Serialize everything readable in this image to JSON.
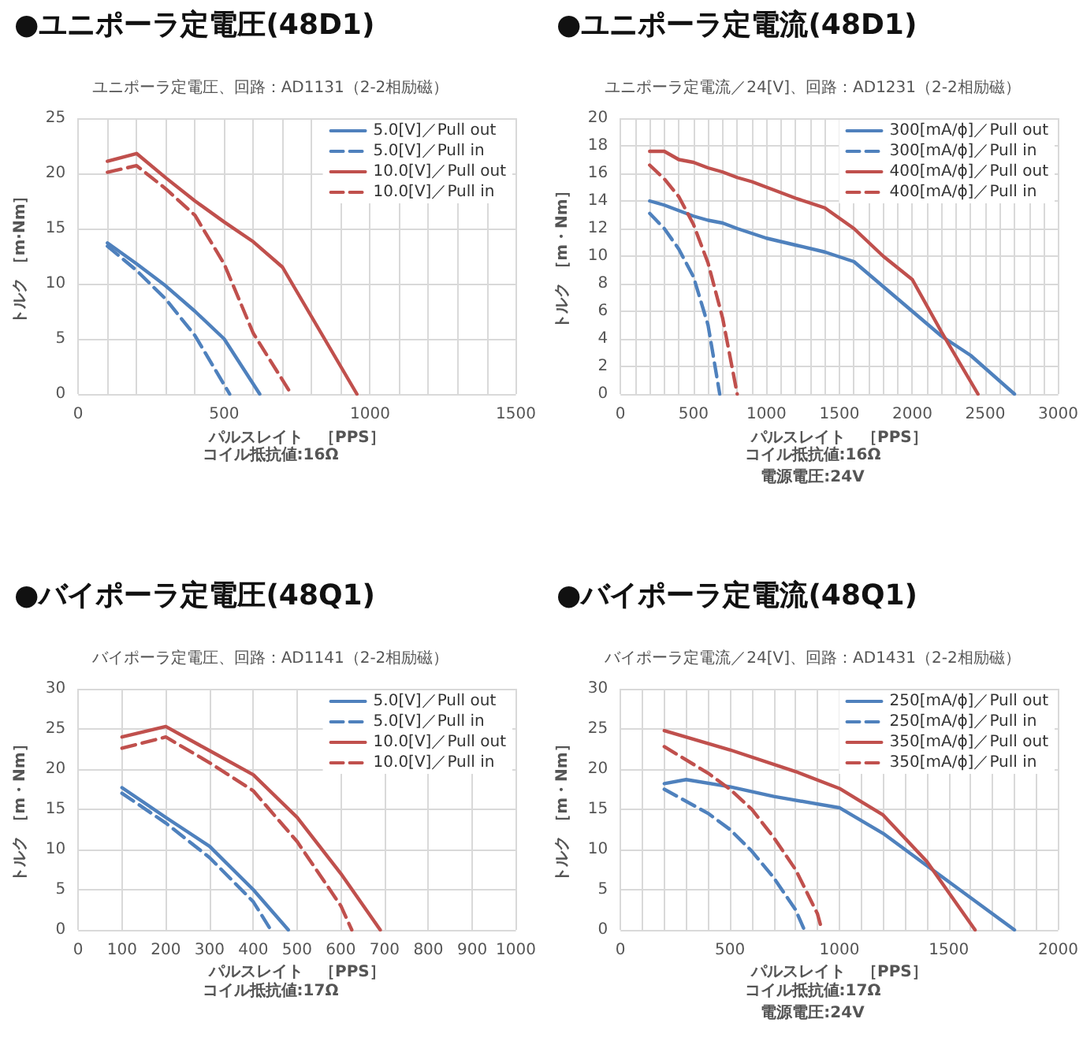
{
  "chart_data": [
    {
      "type": "line",
      "title": "●ユニポーラ定電圧(48D1)",
      "subtitle": "ユニポーラ定電圧、回路：AD1131（2-2相励磁）",
      "xlabel": "パルスレイト　［PPS］",
      "ylabel": "トルク ［m·Nm］",
      "annotations": [
        "コイル抵抗値:16Ω"
      ],
      "legend": "top right",
      "grid": true,
      "marker": "none",
      "xlim": [
        0,
        1500
      ],
      "xticks": [
        0,
        {
          "value": 100,
          "label": null
        },
        {
          "value": 200,
          "label": null
        },
        {
          "value": 300,
          "label": null
        },
        {
          "value": 400,
          "label": null
        },
        500,
        {
          "value": 600,
          "label": null
        },
        {
          "value": 700,
          "label": null
        },
        {
          "value": 800,
          "label": null
        },
        {
          "value": 900,
          "label": null
        },
        1000,
        {
          "value": 1100,
          "label": null
        },
        {
          "value": 1200,
          "label": null
        },
        {
          "value": 1300,
          "label": null
        },
        {
          "value": 1400,
          "label": null
        },
        1500
      ],
      "ylim": [
        0,
        25
      ],
      "yticks": [
        0,
        5,
        10,
        15,
        20,
        25
      ],
      "series": [
        {
          "name": "5.0[V]／Pull out",
          "color": "#4f81bd",
          "line_style": "solid",
          "x": [
            100,
            200,
            300,
            400,
            500,
            622
          ],
          "values": [
            13.7,
            11.8,
            9.8,
            7.5,
            5,
            0
          ]
        },
        {
          "name": "5.0[V]／Pull in",
          "color": "#4f81bd",
          "line_style": "dashed",
          "x": [
            100,
            200,
            300,
            400,
            519
          ],
          "values": [
            13.4,
            11.2,
            8.6,
            5.3,
            0
          ]
        },
        {
          "name": "10.0[V]／Pull out",
          "color": "#c0504d",
          "line_style": "solid",
          "x": [
            100,
            200,
            300,
            400,
            500,
            600,
            700,
            955
          ],
          "values": [
            21.1,
            21.8,
            19.6,
            17.5,
            15.6,
            13.8,
            11.5,
            0
          ]
        },
        {
          "name": "10.0[V]／Pull in",
          "color": "#c0504d",
          "line_style": "dashed",
          "x": [
            100,
            200,
            300,
            400,
            500,
            600,
            730
          ],
          "values": [
            20.1,
            20.7,
            18.6,
            16.2,
            11.8,
            5.5,
            0
          ]
        }
      ]
    },
    {
      "type": "line",
      "title": "●ユニポーラ定電流(48D1)",
      "subtitle": "ユニポーラ定電流／24[V]、回路：AD1231（2-2相励磁）",
      "xlabel": "パルスレイト　［PPS］",
      "ylabel": "トルク ［m・Nm］",
      "annotations": [
        "コイル抵抗値:16Ω",
        "電源電圧:24V"
      ],
      "legend": "top right",
      "grid": true,
      "marker": "none",
      "xlim": [
        0,
        3000
      ],
      "xticks": [
        0,
        {
          "value": 100,
          "label": null
        },
        {
          "value": 200,
          "label": null
        },
        {
          "value": 300,
          "label": null
        },
        {
          "value": 400,
          "label": null
        },
        500,
        {
          "value": 600,
          "label": null
        },
        {
          "value": 700,
          "label": null
        },
        {
          "value": 800,
          "label": null
        },
        {
          "value": 900,
          "label": null
        },
        1000,
        {
          "value": 1100,
          "label": null
        },
        {
          "value": 1200,
          "label": null
        },
        {
          "value": 1300,
          "label": null
        },
        {
          "value": 1400,
          "label": null
        },
        1500,
        {
          "value": 1600,
          "label": null
        },
        {
          "value": 1700,
          "label": null
        },
        {
          "value": 1800,
          "label": null
        },
        {
          "value": 1900,
          "label": null
        },
        2000,
        {
          "value": 2100,
          "label": null
        },
        {
          "value": 2200,
          "label": null
        },
        {
          "value": 2300,
          "label": null
        },
        {
          "value": 2400,
          "label": null
        },
        2500,
        {
          "value": 2600,
          "label": null
        },
        {
          "value": 2700,
          "label": null
        },
        {
          "value": 2800,
          "label": null
        },
        {
          "value": 2900,
          "label": null
        },
        3000
      ],
      "ylim": [
        0,
        20
      ],
      "yticks": [
        0,
        2,
        4,
        6,
        8,
        10,
        12,
        14,
        16,
        18,
        20
      ],
      "series": [
        {
          "name": "300[mA/ϕ]／Pull out",
          "color": "#4f81bd",
          "line_style": "solid",
          "x": [
            200,
            300,
            400,
            500,
            600,
            700,
            800,
            1000,
            1200,
            1400,
            1600,
            1800,
            2000,
            2200,
            2400,
            2700
          ],
          "values": [
            14,
            13.7,
            13.3,
            12.9,
            12.6,
            12.4,
            12,
            11.3,
            10.8,
            10.3,
            9.6,
            7.8,
            6,
            4.2,
            2.8,
            0
          ]
        },
        {
          "name": "300[mA/ϕ]／Pull in",
          "color": "#4f81bd",
          "line_style": "dashed",
          "x": [
            200,
            300,
            400,
            500,
            600,
            680
          ],
          "values": [
            13.1,
            12,
            10.5,
            8.5,
            5,
            0
          ]
        },
        {
          "name": "400[mA/ϕ]／Pull out",
          "color": "#c0504d",
          "line_style": "solid",
          "x": [
            200,
            300,
            400,
            500,
            600,
            700,
            800,
            900,
            1000,
            1200,
            1400,
            1600,
            1800,
            2000,
            2200,
            2450
          ],
          "values": [
            17.6,
            17.6,
            17,
            16.8,
            16.4,
            16.1,
            15.7,
            15.4,
            15,
            14.2,
            13.5,
            12,
            10,
            8.3,
            4.5,
            0
          ]
        },
        {
          "name": "400[mA/ϕ]／Pull in",
          "color": "#c0504d",
          "line_style": "dashed",
          "x": [
            200,
            300,
            400,
            500,
            600,
            700,
            800
          ],
          "values": [
            16.6,
            15.6,
            14.3,
            12.3,
            9.5,
            5.5,
            0
          ]
        }
      ]
    },
    {
      "type": "line",
      "title": "●バイポーラ定電圧(48Q1)",
      "subtitle": "バイポーラ定電圧、回路：AD1141（2-2相励磁）",
      "xlabel": "パルスレイト　［PPS］",
      "ylabel": "トルク ［m・Nm］",
      "annotations": [
        "コイル抵抗値:17Ω"
      ],
      "legend": "top right",
      "grid": true,
      "marker": "none",
      "xlim": [
        0,
        1000
      ],
      "xticks": [
        0,
        100,
        200,
        300,
        400,
        500,
        600,
        700,
        800,
        900,
        1000
      ],
      "ylim": [
        0,
        30
      ],
      "yticks": [
        0,
        5,
        10,
        15,
        20,
        25,
        30
      ],
      "series": [
        {
          "name": "5.0[V]／Pull out",
          "color": "#4f81bd",
          "line_style": "solid",
          "x": [
            100,
            200,
            300,
            400,
            480
          ],
          "values": [
            17.7,
            14,
            10.4,
            5,
            0
          ]
        },
        {
          "name": "5.0[V]／Pull in",
          "color": "#4f81bd",
          "line_style": "dashed",
          "x": [
            100,
            200,
            300,
            400,
            440
          ],
          "values": [
            17,
            13.3,
            9,
            3.5,
            0
          ]
        },
        {
          "name": "10.0[V]／Pull out",
          "color": "#c0504d",
          "line_style": "solid",
          "x": [
            100,
            200,
            300,
            400,
            500,
            600,
            690
          ],
          "values": [
            24,
            25.3,
            22.3,
            19.3,
            14,
            7,
            0
          ]
        },
        {
          "name": "10.0[V]／Pull in",
          "color": "#c0504d",
          "line_style": "dashed",
          "x": [
            100,
            200,
            300,
            400,
            500,
            600,
            625
          ],
          "values": [
            22.6,
            24,
            20.8,
            17.3,
            11,
            3,
            0
          ]
        }
      ]
    },
    {
      "type": "line",
      "title": "●バイポーラ定電流(48Q1)",
      "subtitle": "バイポーラ定電流／24[V]、回路：AD1431（2-2相励磁）",
      "xlabel": "パルスレイト　［PPS］",
      "ylabel": "トルク ［m・Nm］",
      "annotations": [
        "コイル抵抗値:17Ω",
        "電源電圧:24V"
      ],
      "legend": "top right",
      "grid": true,
      "marker": "none",
      "xlim": [
        0,
        2000
      ],
      "xticks": [
        0,
        {
          "value": 100,
          "label": null
        },
        {
          "value": 200,
          "label": null
        },
        {
          "value": 300,
          "label": null
        },
        {
          "value": 400,
          "label": null
        },
        500,
        {
          "value": 600,
          "label": null
        },
        {
          "value": 700,
          "label": null
        },
        {
          "value": 800,
          "label": null
        },
        {
          "value": 900,
          "label": null
        },
        1000,
        {
          "value": 1100,
          "label": null
        },
        {
          "value": 1200,
          "label": null
        },
        {
          "value": 1300,
          "label": null
        },
        {
          "value": 1400,
          "label": null
        },
        1500,
        {
          "value": 1600,
          "label": null
        },
        {
          "value": 1700,
          "label": null
        },
        {
          "value": 1800,
          "label": null
        },
        {
          "value": 1900,
          "label": null
        },
        2000
      ],
      "ylim": [
        0,
        30
      ],
      "yticks": [
        0,
        5,
        10,
        15,
        20,
        25,
        30
      ],
      "series": [
        {
          "name": "250[mA/ϕ]／Pull out",
          "color": "#4f81bd",
          "line_style": "solid",
          "x": [
            200,
            300,
            500,
            700,
            1000,
            1200,
            1400,
            1600,
            1800
          ],
          "values": [
            18.2,
            18.7,
            17.8,
            16.6,
            15.2,
            12,
            8,
            4,
            0
          ]
        },
        {
          "name": "250[mA/ϕ]／Pull in",
          "color": "#4f81bd",
          "line_style": "dashed",
          "x": [
            200,
            400,
            500,
            600,
            700,
            800,
            840
          ],
          "values": [
            17.5,
            14.5,
            12.5,
            9.8,
            6.5,
            2.5,
            0
          ]
        },
        {
          "name": "350[mA/ϕ]／Pull out",
          "color": "#c0504d",
          "line_style": "solid",
          "x": [
            200,
            500,
            800,
            1000,
            1200,
            1400,
            1620
          ],
          "values": [
            24.8,
            22.4,
            19.7,
            17.6,
            14.3,
            8.5,
            0
          ]
        },
        {
          "name": "350[mA/ϕ]／Pull in",
          "color": "#c0504d",
          "line_style": "dashed",
          "x": [
            200,
            400,
            500,
            600,
            700,
            800,
            900,
            920
          ],
          "values": [
            22.8,
            19.5,
            17.5,
            15,
            11.5,
            7.5,
            2,
            0
          ]
        }
      ]
    }
  ]
}
